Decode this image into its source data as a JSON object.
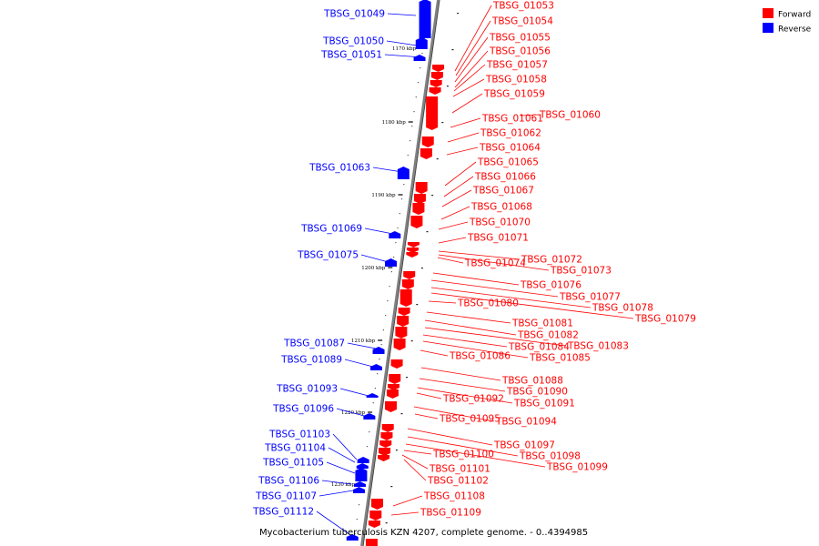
{
  "caption": "Mycobacterium tuberculosis KZN 4207, complete genome. - 0..4394985",
  "legend": [
    {
      "label": "Forward",
      "color": "#ff0000"
    },
    {
      "label": "Reverse",
      "color": "#0000ff"
    }
  ],
  "colors": {
    "forward": "#ff0000",
    "reverse": "#0000ff",
    "backbone": "#808080"
  },
  "ticks": [
    "1170 kbp",
    "1180 kbp",
    "1190 kbp",
    "1200 kbp",
    "1210 kbp",
    "1220 kbp",
    "1230 kbp"
  ],
  "reverse_genes": [
    "TBSG_01049",
    "TBSG_01050",
    "TBSG_01051",
    "TBSG_01063",
    "TBSG_01069",
    "TBSG_01075",
    "TBSG_01087",
    "TBSG_01089",
    "TBSG_01093",
    "TBSG_01096",
    "TBSG_01103",
    "TBSG_01104",
    "TBSG_01105",
    "TBSG_01106",
    "TBSG_01107",
    "TBSG_01112"
  ],
  "forward_genes": [
    "TBSG_01053",
    "TBSG_01054",
    "TBSG_01055",
    "TBSG_01056",
    "TBSG_01057",
    "TBSG_01058",
    "TBSG_01059",
    "TBSG_01060",
    "TBSG_01061",
    "TBSG_01062",
    "TBSG_01064",
    "TBSG_01065",
    "TBSG_01066",
    "TBSG_01067",
    "TBSG_01068",
    "TBSG_01070",
    "TBSG_01071",
    "TBSG_01072",
    "TBSG_01073",
    "TBSG_01074",
    "TBSG_01076",
    "TBSG_01077",
    "TBSG_01078",
    "TBSG_01079",
    "TBSG_01080",
    "TBSG_01081",
    "TBSG_01082",
    "TBSG_01083",
    "TBSG_01084",
    "TBSG_01085",
    "TBSG_01086",
    "TBSG_01088",
    "TBSG_01090",
    "TBSG_01091",
    "TBSG_01092",
    "TBSG_01094",
    "TBSG_01095",
    "TBSG_01097",
    "TBSG_01098",
    "TBSG_01099",
    "TBSG_01100",
    "TBSG_01101",
    "TBSG_01102",
    "TBSG_01108",
    "TBSG_01109"
  ]
}
